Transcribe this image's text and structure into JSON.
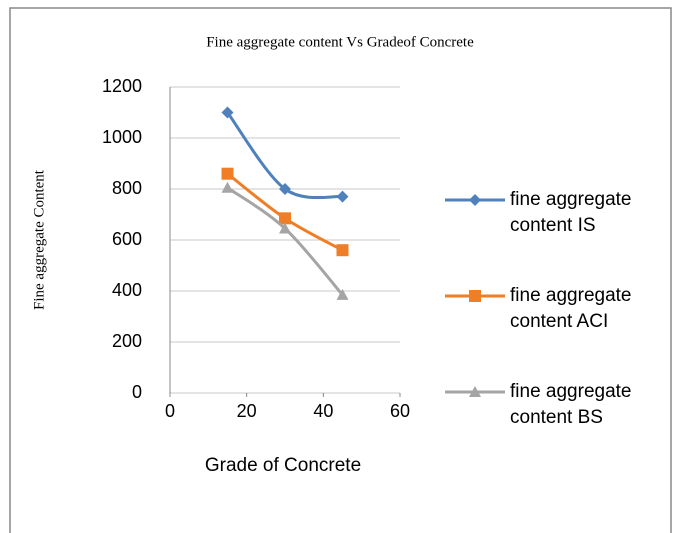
{
  "chart_data": {
    "type": "scatter",
    "title": "Fine aggregate content Vs Gradeof Concrete",
    "x_label": "Grade of Concrete",
    "y_label": "Fine aggregate Content",
    "x": [
      15,
      30,
      45
    ],
    "series": [
      {
        "name": "fine aggregate content IS",
        "color": "#4f81bd",
        "marker": "diamond",
        "values": [
          1100,
          800,
          770
        ]
      },
      {
        "name": "fine aggregate content ACI",
        "color": "#f07e26",
        "marker": "square",
        "values": [
          860,
          685,
          560
        ]
      },
      {
        "name": "fine aggregate content BS",
        "color": "#a5a5a5",
        "marker": "triangle",
        "values": [
          805,
          645,
          385
        ]
      }
    ],
    "xlim": [
      0,
      60
    ],
    "xticks": [
      0,
      20,
      40,
      60
    ],
    "ylim": [
      0,
      1200
    ],
    "yticks": [
      0,
      200,
      400,
      600,
      800,
      1000,
      1200
    ],
    "grid": true,
    "smooth": true,
    "legend": "right"
  }
}
